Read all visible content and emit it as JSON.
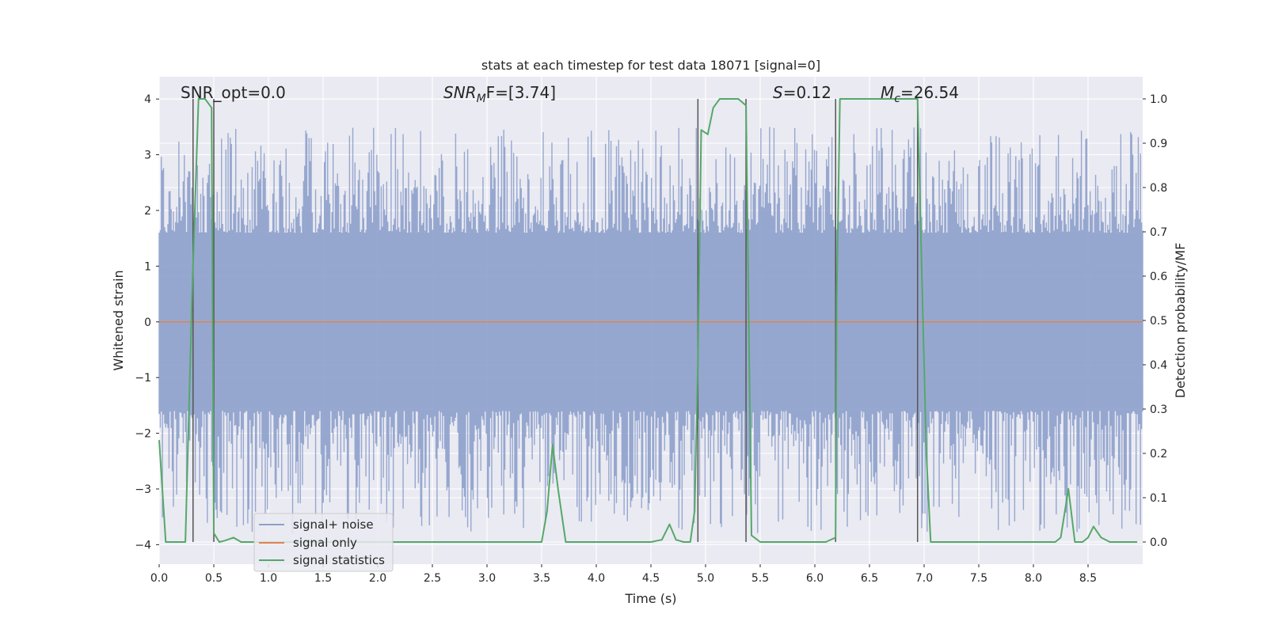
{
  "chart_data": {
    "type": "line",
    "title": "stats at each timestep for test data 18071 [signal=0]",
    "xlabel": "Time (s)",
    "ylabel_left": "Whitened strain",
    "ylabel_right": "Detection probability/MF",
    "xlim": [
      0,
      9.0
    ],
    "ylim_left": [
      -4.35,
      4.4
    ],
    "ylim_right": [
      -0.05,
      1.05
    ],
    "x_ticks": [
      0.0,
      0.5,
      1.0,
      1.5,
      2.0,
      2.5,
      3.0,
      3.5,
      4.0,
      4.5,
      5.0,
      5.5,
      6.0,
      6.5,
      7.0,
      7.5,
      8.0,
      8.5
    ],
    "x_tick_labels": [
      "0.0",
      "0.5",
      "1.0",
      "1.5",
      "2.0",
      "2.5",
      "3.0",
      "3.5",
      "4.0",
      "4.5",
      "5.0",
      "5.5",
      "6.0",
      "6.5",
      "7.0",
      "7.5",
      "8.0",
      "8.5"
    ],
    "y_left_ticks": [
      -4,
      -3,
      -2,
      -1,
      0,
      1,
      2,
      3,
      4
    ],
    "y_left_tick_labels": [
      "−4",
      "−3",
      "−2",
      "−1",
      "0",
      "1",
      "2",
      "3",
      "4"
    ],
    "y_right_ticks": [
      0.0,
      0.1,
      0.2,
      0.3,
      0.4,
      0.5,
      0.6,
      0.7,
      0.8,
      0.9,
      1.0
    ],
    "y_right_tick_labels": [
      "0.0",
      "0.1",
      "0.2",
      "0.3",
      "0.4",
      "0.5",
      "0.6",
      "0.7",
      "0.8",
      "0.9",
      "1.0"
    ],
    "annotations": {
      "snr_opt": "SNR_opt=0.0",
      "snr_mf_base": "SNR",
      "snr_mf_sub": "M",
      "snr_mf_rest": "F=[3.74]",
      "s_label": "S",
      "s_value": "=0.12",
      "mc_label": "M",
      "mc_sub": "c",
      "mc_value": "=26.54"
    },
    "legend": {
      "position": "lower-left",
      "entries": [
        "signal+ noise",
        "signal only",
        "signal statistics"
      ]
    },
    "colors": {
      "background": "#eaeaf2",
      "grid": "#ffffff",
      "noise": "#8da0cb",
      "signal_only": "#dd8452",
      "statistics": "#55a868",
      "vlines": "#555555"
    },
    "noise": {
      "name": "signal+ noise",
      "sample_count": 900,
      "envelope_pos": 1.6,
      "envelope_neg": -1.6,
      "peak_max": 3.5,
      "peak_min": -3.8
    },
    "vertical_lines_x": [
      0.31,
      0.5,
      4.93,
      5.37,
      6.19,
      6.94
    ],
    "series": [
      {
        "name": "signal statistics",
        "x": [
          0.0,
          0.06,
          0.12,
          0.18,
          0.24,
          0.3,
          0.36,
          0.42,
          0.48,
          0.5,
          0.55,
          0.6,
          0.68,
          0.75,
          0.85,
          1.0,
          1.5,
          2.0,
          2.5,
          3.0,
          3.3,
          3.5,
          3.55,
          3.6,
          3.65,
          3.72,
          3.8,
          4.0,
          4.3,
          4.5,
          4.6,
          4.67,
          4.73,
          4.8,
          4.86,
          4.9,
          4.93,
          4.96,
          5.02,
          5.07,
          5.13,
          5.18,
          5.3,
          5.37,
          5.42,
          5.5,
          5.7,
          6.0,
          6.1,
          6.19,
          6.2,
          6.23,
          6.3,
          6.5,
          6.7,
          6.94,
          6.98,
          7.02,
          7.06,
          7.2,
          7.5,
          8.0,
          8.2,
          8.25,
          8.32,
          8.38,
          8.45,
          8.5,
          8.55,
          8.62,
          8.7,
          8.8,
          8.95
        ],
        "values": [
          0.23,
          0.0,
          0.0,
          0.0,
          0.0,
          0.55,
          1.0,
          1.0,
          0.98,
          0.02,
          0.0,
          0.003,
          0.01,
          0.0,
          0.0,
          0.0,
          0.0,
          0.0,
          0.0,
          0.0,
          0.0,
          0.0,
          0.07,
          0.22,
          0.12,
          0.0,
          0.0,
          0.0,
          0.0,
          0.0,
          0.005,
          0.04,
          0.005,
          0.0,
          0.0,
          0.07,
          0.4,
          0.93,
          0.92,
          0.98,
          1.0,
          1.0,
          1.0,
          0.985,
          0.015,
          0.0,
          0.0,
          0.0,
          0.0,
          0.01,
          0.55,
          1.0,
          1.0,
          1.0,
          1.0,
          1.0,
          0.6,
          0.2,
          0.0,
          0.0,
          0.0,
          0.0,
          0.0,
          0.01,
          0.12,
          0.0,
          0.0,
          0.01,
          0.035,
          0.01,
          0.0,
          0.0,
          0.0
        ]
      },
      {
        "name": "signal only",
        "x": [
          0.0,
          9.0
        ],
        "values": [
          0.0,
          0.0
        ]
      }
    ]
  }
}
